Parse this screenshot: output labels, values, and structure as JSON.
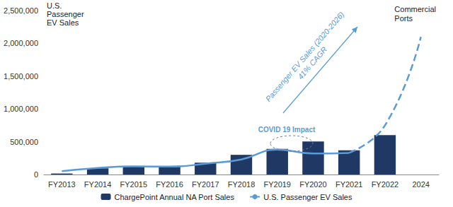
{
  "chart_data": {
    "type": "bar",
    "y_label": "U.S.\nPassenger\nEV Sales",
    "categories": [
      "FY2013",
      "FY2014",
      "FY2015",
      "FY2016",
      "FY2017",
      "FY2018",
      "FY2019",
      "FY2020",
      "FY2021",
      "FY2022",
      "2024"
    ],
    "series": [
      {
        "name": "ChargePoint Annual NA Port Sales",
        "type": "bar",
        "color": "#1f3864",
        "values": [
          15000,
          95000,
          130000,
          120000,
          180000,
          300000,
          390000,
          505000,
          370000,
          600000,
          null
        ]
      },
      {
        "name": "U.S. Passenger EV Sales",
        "type": "line",
        "color": "#5b9bd5",
        "line_style": "solid",
        "values": [
          50000,
          100000,
          125000,
          120000,
          165000,
          230000,
          380000,
          320000,
          330000,
          null,
          null
        ]
      },
      {
        "name": "Commercial\nPorts",
        "type": "line",
        "color": "#5b9bd5",
        "line_style": "dashed",
        "values": [
          null,
          null,
          null,
          null,
          null,
          null,
          null,
          null,
          330000,
          750000,
          2100000
        ]
      }
    ],
    "ylim": [
      0,
      2500000
    ],
    "yticks": [
      0,
      {
        "value": 500000,
        "label": "500,000"
      },
      {
        "value": 1000000,
        "label": "1,000,000"
      },
      {
        "value": 1500000,
        "label": "1,500,000"
      },
      {
        "value": 2000000,
        "label": "2,000,000"
      },
      {
        "value": 2500000,
        "label": "2,500,000"
      }
    ],
    "annotations": [
      "COVID 19 Impact",
      "Passenger EV Sales (2020-2026)\n41% CAGR"
    ],
    "legend": "bottom",
    "grid": false
  }
}
